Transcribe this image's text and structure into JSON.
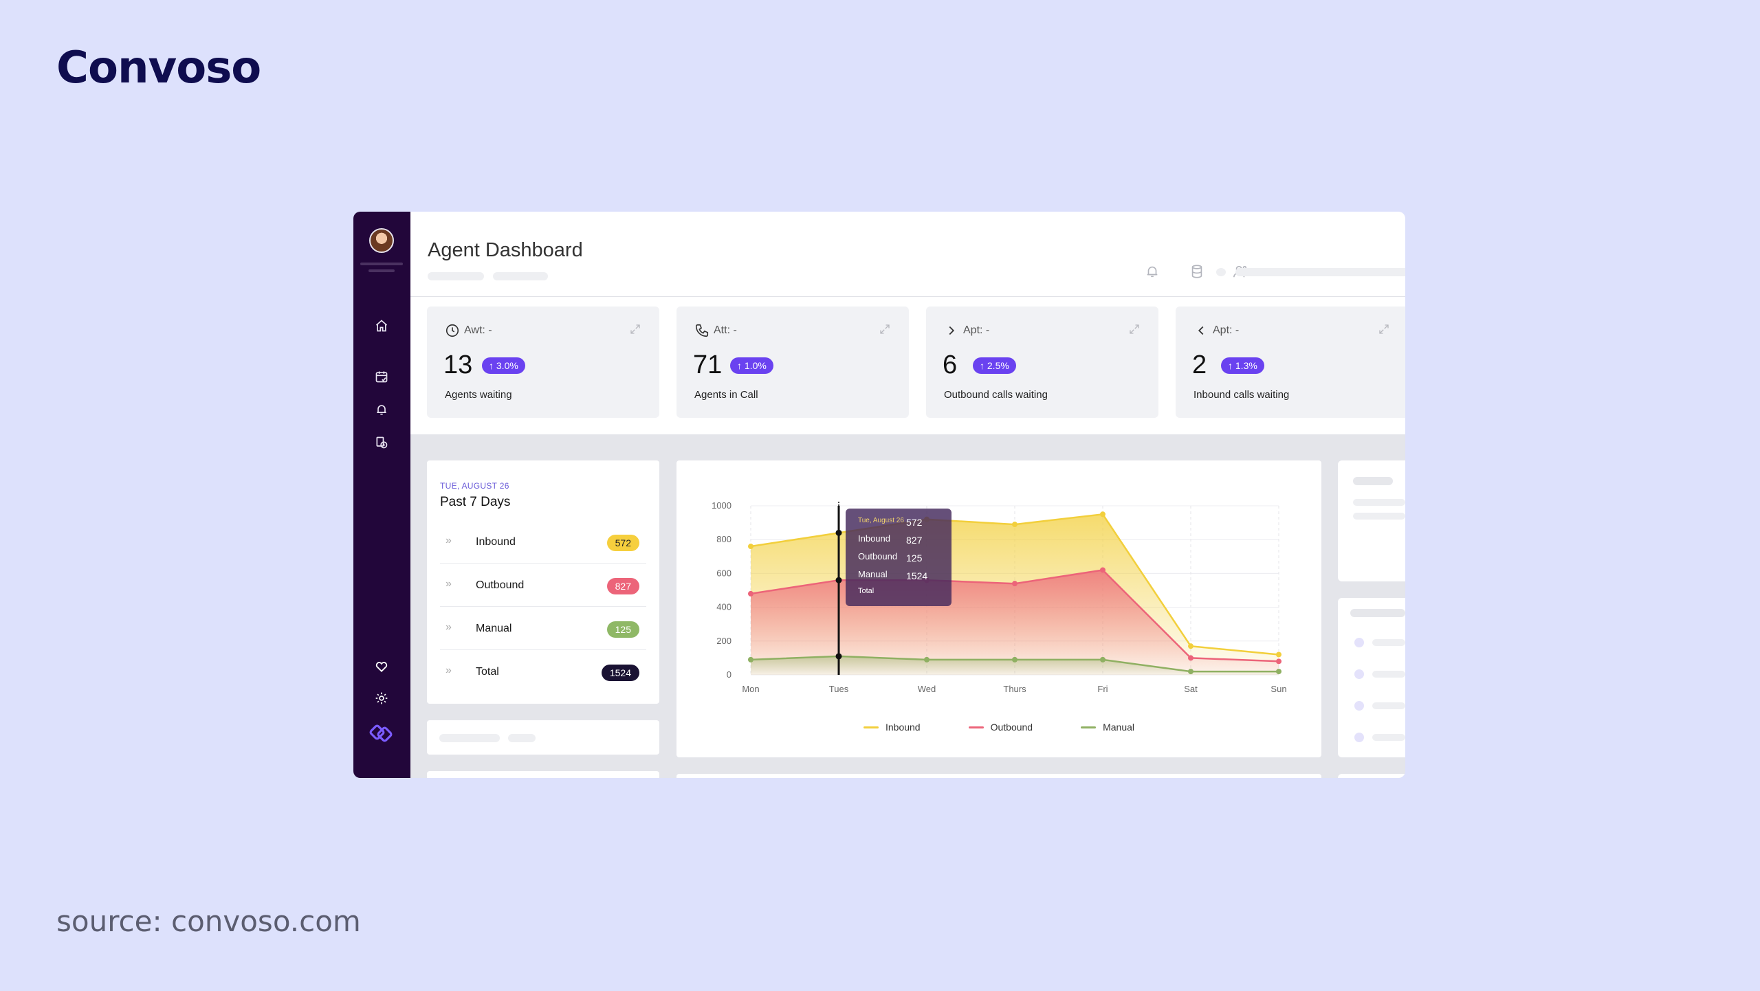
{
  "brand": "Convoso",
  "source": "source: convoso.com",
  "header": {
    "title": "Agent Dashboard"
  },
  "stats": [
    {
      "head": "Awt: -",
      "value": "13",
      "change": "↑ 3.0%",
      "label": "Agents waiting",
      "icon": "clock-icon"
    },
    {
      "head": "Att: -",
      "value": "71",
      "change": "↑ 1.0%",
      "label": "Agents in Call",
      "icon": "phone-icon"
    },
    {
      "head": "Apt: -",
      "value": "6",
      "change": "↑ 2.5%",
      "label": "Outbound calls waiting",
      "icon": "chevron-right-icon"
    },
    {
      "head": "Apt: -",
      "value": "2",
      "change": "↑ 1.3%",
      "label": "Inbound calls waiting",
      "icon": "chevron-left-icon"
    }
  ],
  "past": {
    "date": "TUE, AUGUST 26",
    "title": "Past 7 Days",
    "rows": [
      {
        "label": "Inbound",
        "value": "572"
      },
      {
        "label": "Outbound",
        "value": "827"
      },
      {
        "label": "Manual",
        "value": "125"
      },
      {
        "label": "Total",
        "value": "1524"
      }
    ]
  },
  "tooltip": {
    "date": "Tue, August 26",
    "labels": [
      "Inbound",
      "Outbound",
      "Manual",
      "Total"
    ],
    "values": [
      "572",
      "827",
      "125",
      "1524"
    ]
  },
  "colors": {
    "inbound": "#f2cf3c",
    "outbound": "#ec6479",
    "manual": "#8fb062",
    "accent": "#6a42f0",
    "sidebar": "#22063a"
  },
  "chart_data": {
    "type": "area",
    "categories": [
      "Mon",
      "Tues",
      "Wed",
      "Thurs",
      "Fri",
      "Sat",
      "Sun"
    ],
    "series": [
      {
        "name": "Inbound",
        "values": [
          760,
          840,
          920,
          890,
          950,
          170,
          120
        ]
      },
      {
        "name": "Outbound",
        "values": [
          480,
          560,
          560,
          540,
          620,
          100,
          80
        ]
      },
      {
        "name": "Manual",
        "values": [
          90,
          110,
          90,
          90,
          90,
          20,
          20
        ]
      }
    ],
    "yticks": [
      0,
      200,
      400,
      600,
      800,
      1000
    ],
    "ylim": [
      0,
      1000
    ]
  }
}
